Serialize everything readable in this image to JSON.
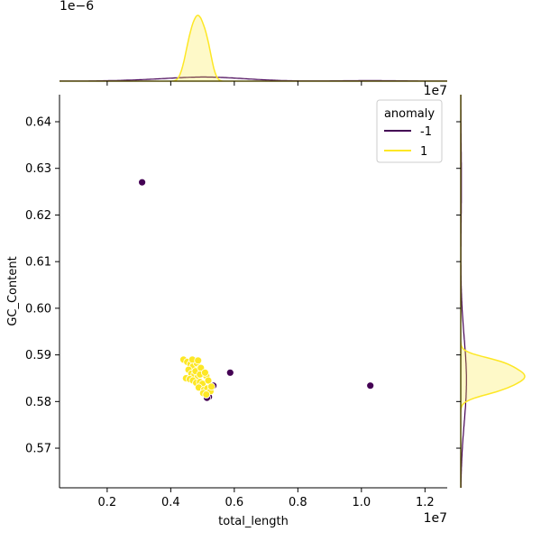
{
  "chart_data": {
    "type": "scatter",
    "variant": "jointplot",
    "xlabel": "total_length",
    "ylabel": "GC_Content",
    "x_offset_text": "1e7",
    "top_marginal_offset_text": "1e−6",
    "right_marginal_offset_text": "1e7",
    "xlim": [
      500000,
      12700000
    ],
    "ylim": [
      0.5615,
      0.6458
    ],
    "x_ticks": [
      2000000,
      4000000,
      6000000,
      8000000,
      10000000,
      12000000
    ],
    "x_tick_labels": [
      "0.2",
      "0.4",
      "0.6",
      "0.8",
      "1.0",
      "1.2"
    ],
    "y_ticks": [
      0.57,
      0.58,
      0.59,
      0.6,
      0.61,
      0.62,
      0.63,
      0.64
    ],
    "y_tick_labels": [
      "0.57",
      "0.58",
      "0.59",
      "0.60",
      "0.61",
      "0.62",
      "0.63",
      "0.64"
    ],
    "grid": false,
    "legend": {
      "title": "anomaly",
      "placement": "top-right",
      "entries": [
        {
          "label": "-1",
          "color": "#440154"
        },
        {
          "label": "1",
          "color": "#fde725"
        }
      ]
    },
    "series": [
      {
        "name": "-1",
        "color": "#440154",
        "points": [
          {
            "x": 3100000,
            "y": 0.627
          },
          {
            "x": 5870000,
            "y": 0.5862
          },
          {
            "x": 10280000,
            "y": 0.5834
          },
          {
            "x": 4760000,
            "y": 0.5888
          },
          {
            "x": 4800000,
            "y": 0.5878
          },
          {
            "x": 4960000,
            "y": 0.586
          },
          {
            "x": 5200000,
            "y": 0.581
          },
          {
            "x": 5140000,
            "y": 0.5808
          },
          {
            "x": 5340000,
            "y": 0.5834
          },
          {
            "x": 4960000,
            "y": 0.5832
          }
        ]
      },
      {
        "name": "1",
        "color": "#fde725",
        "points": [
          {
            "x": 4400000,
            "y": 0.589
          },
          {
            "x": 4520000,
            "y": 0.5885
          },
          {
            "x": 4620000,
            "y": 0.588
          },
          {
            "x": 4700000,
            "y": 0.5875
          },
          {
            "x": 4820000,
            "y": 0.5882
          },
          {
            "x": 4900000,
            "y": 0.587
          },
          {
            "x": 4560000,
            "y": 0.5868
          },
          {
            "x": 4650000,
            "y": 0.586
          },
          {
            "x": 4750000,
            "y": 0.5858
          },
          {
            "x": 4850000,
            "y": 0.5852
          },
          {
            "x": 4480000,
            "y": 0.585
          },
          {
            "x": 4600000,
            "y": 0.5848
          },
          {
            "x": 4700000,
            "y": 0.5845
          },
          {
            "x": 4800000,
            "y": 0.584
          },
          {
            "x": 4920000,
            "y": 0.5842
          },
          {
            "x": 5000000,
            "y": 0.5838
          },
          {
            "x": 5120000,
            "y": 0.5855
          },
          {
            "x": 5180000,
            "y": 0.5845
          },
          {
            "x": 4880000,
            "y": 0.583
          },
          {
            "x": 5050000,
            "y": 0.5825
          },
          {
            "x": 5150000,
            "y": 0.5828
          },
          {
            "x": 5250000,
            "y": 0.5822
          },
          {
            "x": 5020000,
            "y": 0.5818
          },
          {
            "x": 5120000,
            "y": 0.5815
          },
          {
            "x": 5280000,
            "y": 0.5832
          },
          {
            "x": 4780000,
            "y": 0.5865
          },
          {
            "x": 4950000,
            "y": 0.5872
          },
          {
            "x": 4680000,
            "y": 0.589
          },
          {
            "x": 4860000,
            "y": 0.5888
          },
          {
            "x": 4920000,
            "y": 0.5858
          },
          {
            "x": 5080000,
            "y": 0.5862
          }
        ]
      }
    ]
  }
}
